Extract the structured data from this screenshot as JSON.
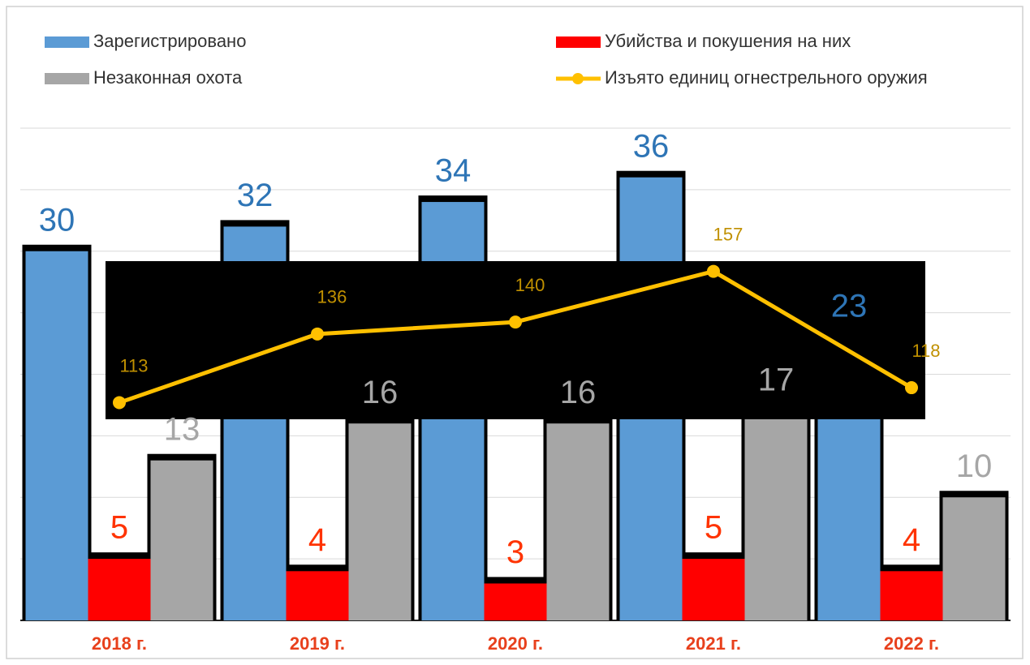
{
  "chart_data": {
    "type": "bar",
    "categories": [
      "2018 г.",
      "2019 г.",
      "2020 г.",
      "2021 г.",
      "2022 г."
    ],
    "series": [
      {
        "name": "Зарегистрировано",
        "color": "#5b9bd5",
        "label_color": "#2e75b6",
        "values": [
          30,
          32,
          34,
          36,
          23
        ]
      },
      {
        "name": "Убийства и покушения на них",
        "color": "#ff0000",
        "label_color": "#ff3300",
        "values": [
          5,
          4,
          3,
          5,
          4
        ]
      },
      {
        "name": "Незаконная охота",
        "color": "#a6a6a6",
        "label_color": "#a6a6a6",
        "values": [
          13,
          16,
          16,
          17,
          10
        ]
      },
      {
        "name": "Изъято единиц огнестрельного оружия",
        "color": "#ffc000",
        "label_color": "#c09000",
        "type": "line",
        "axis": "y2",
        "values": [
          113,
          136,
          140,
          157,
          118
        ]
      }
    ],
    "ylim": [
      0,
      40
    ],
    "yticks": [
      0,
      5,
      10,
      15,
      20,
      25,
      30,
      35,
      40
    ],
    "y2lim": [
      40,
      205
    ],
    "grid": true,
    "legend": "top"
  }
}
